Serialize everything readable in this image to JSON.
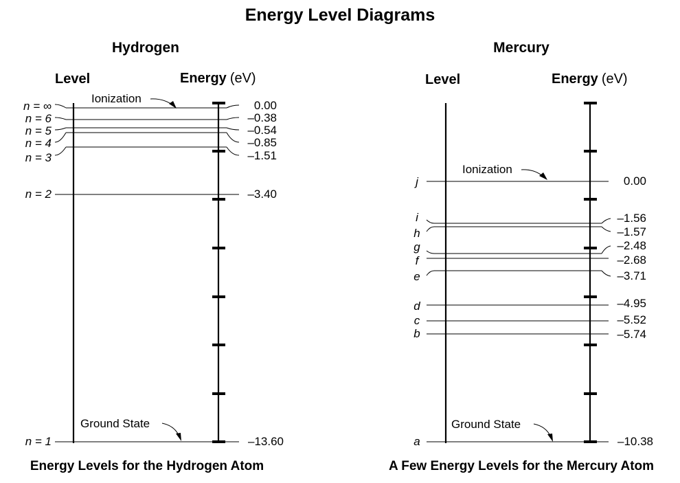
{
  "title": "Energy Level Diagrams",
  "hydrogen": {
    "name": "Hydrogen",
    "level_header": "Level",
    "energy_header": "Energy",
    "energy_unit": "(eV)",
    "caption": "Energy Levels for the Hydrogen Atom",
    "ionization_label": "Ionization",
    "ground_label": "Ground State",
    "levels": [
      {
        "label": "n = ∞",
        "energy": 0.0,
        "energy_text": "0.00"
      },
      {
        "label": "n = 6",
        "energy": -0.38,
        "energy_text": "–0.38"
      },
      {
        "label": "n = 5",
        "energy": -0.54,
        "energy_text": "–0.54"
      },
      {
        "label": "n = 4",
        "energy": -0.85,
        "energy_text": "–0.85"
      },
      {
        "label": "n = 3",
        "energy": -1.51,
        "energy_text": "–1.51"
      },
      {
        "label": "n = 2",
        "energy": -3.4,
        "energy_text": "–3.40"
      },
      {
        "label": "n = 1",
        "energy": -13.6,
        "energy_text": "–13.60"
      }
    ]
  },
  "mercury": {
    "name": "Mercury",
    "level_header": "Level",
    "energy_header": "Energy",
    "energy_unit": "(eV)",
    "caption": "A Few Energy Levels for the Mercury Atom",
    "ionization_label": "Ionization",
    "ground_label": "Ground State",
    "levels": [
      {
        "label": "j",
        "energy": 0.0,
        "energy_text": "0.00"
      },
      {
        "label": "i",
        "energy": -1.56,
        "energy_text": "–1.56"
      },
      {
        "label": "h",
        "energy": -1.57,
        "energy_text": "–1.57"
      },
      {
        "label": "g",
        "energy": -2.48,
        "energy_text": "–2.48"
      },
      {
        "label": "f",
        "energy": -2.68,
        "energy_text": "–2.68"
      },
      {
        "label": "e",
        "energy": -3.71,
        "energy_text": "–3.71"
      },
      {
        "label": "d",
        "energy": -4.95,
        "energy_text": "–4.95"
      },
      {
        "label": "c",
        "energy": -5.52,
        "energy_text": "–5.52"
      },
      {
        "label": "b",
        "energy": -5.74,
        "energy_text": "–5.74"
      },
      {
        "label": "a",
        "energy": -10.38,
        "energy_text": "–10.38"
      }
    ]
  }
}
